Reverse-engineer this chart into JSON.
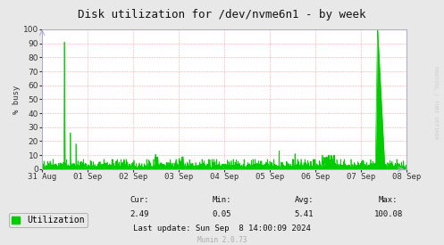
{
  "title": "Disk utilization for /dev/nvme6n1 - by week",
  "ylabel": "% busy",
  "bg_color": "#e8e8e8",
  "plot_bg_color": "#ffffff",
  "grid_color": "#ff9999",
  "line_color": "#00cc00",
  "fill_color": "#00cc00",
  "ylim": [
    0,
    100
  ],
  "yticks": [
    0,
    10,
    20,
    30,
    40,
    50,
    60,
    70,
    80,
    90,
    100
  ],
  "xtick_labels": [
    "31 Aug",
    "01 Sep",
    "02 Sep",
    "03 Sep",
    "04 Sep",
    "05 Sep",
    "06 Sep",
    "07 Sep",
    "08 Sep"
  ],
  "legend_label": "Utilization",
  "cur_val": "2.49",
  "min_val": "0.05",
  "avg_val": "5.41",
  "max_val": "100.08",
  "last_update": "Last update: Sun Sep  8 14:00:09 2024",
  "munin_version": "Munin 2.0.73",
  "watermark": "RRDTOOL / TOBI OETIKER",
  "title_fontsize": 9,
  "axis_fontsize": 6.5,
  "legend_fontsize": 7,
  "small_fontsize": 6.5
}
